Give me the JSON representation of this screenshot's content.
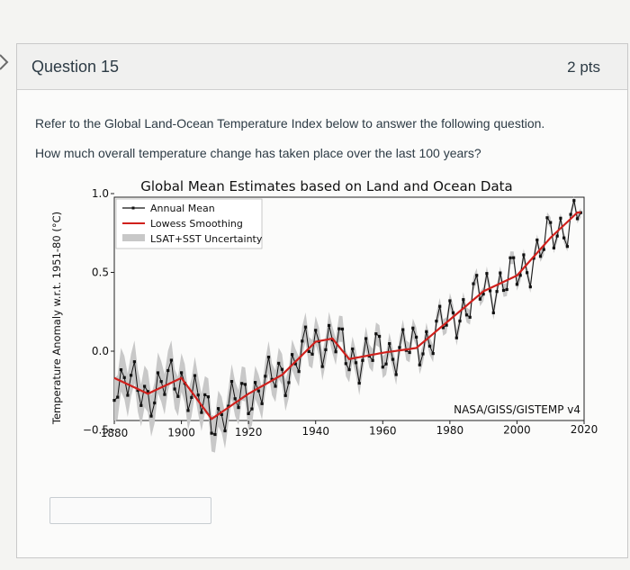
{
  "question": {
    "title": "Question 15",
    "points": "2 pts",
    "intro": "Refer to the Global Land-Ocean Temperature Index below to answer the following question.",
    "ask": "How much overall temperature change has taken place over the last 100 years?"
  },
  "answer": {
    "value": ""
  },
  "icons": {
    "nav": "chevron-right-icon"
  },
  "chart_data": {
    "type": "line",
    "title": "Global Mean Estimates based on Land and Ocean Data",
    "xlabel": "",
    "ylabel": "Temperature Anomaly w.r.t. 1951-80 (°C)",
    "xlim": [
      1880,
      2020
    ],
    "ylim": [
      -0.5,
      1.0
    ],
    "x_ticks": [
      "1880",
      "1900",
      "1920",
      "1940",
      "1960",
      "1980",
      "2000",
      "2020"
    ],
    "y_ticks": [
      "1.0",
      "0.5",
      "0.0",
      "−0.5"
    ],
    "source_note": "NASA/GISS/GISTEMP v4",
    "legend": {
      "placement": "top-left",
      "entries": [
        "Annual Mean",
        "Lowess Smoothing",
        "LSAT+SST Uncertainty"
      ]
    },
    "colors": {
      "annual": "#111111",
      "lowess": "#d0201c",
      "uncertainty": "#c8c8c8"
    },
    "smooth_anchor": {
      "x": [
        1880,
        1890,
        1900,
        1909,
        1920,
        1930,
        1940,
        1945,
        1950,
        1960,
        1970,
        1980,
        1990,
        2000,
        2010,
        2018
      ],
      "y": [
        -0.17,
        -0.27,
        -0.17,
        -0.43,
        -0.27,
        -0.15,
        0.06,
        0.08,
        -0.05,
        -0.01,
        0.02,
        0.2,
        0.38,
        0.48,
        0.72,
        0.88
      ]
    },
    "uncertainty_halfwidth": {
      "x": [
        1880,
        1940,
        1980,
        2018
      ],
      "y": [
        0.14,
        0.09,
        0.05,
        0.03
      ]
    }
  }
}
